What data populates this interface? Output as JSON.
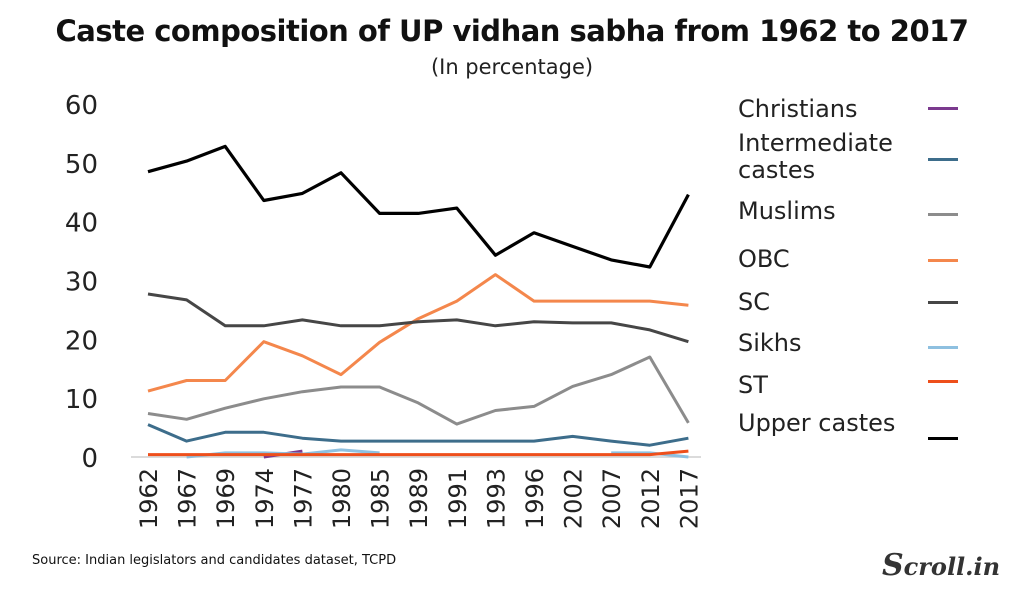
{
  "title": "Caste composition of UP vidhan sabha from 1962 to 2017",
  "subtitle": "(In percentage)",
  "source": "Source: Indian legislators and candidates dataset, TCPD",
  "brand": "Scroll.in",
  "chart_data": {
    "type": "line",
    "categories": [
      "1962",
      "1967",
      "1969",
      "1974",
      "1977",
      "1980",
      "1985",
      "1989",
      "1991",
      "1993",
      "1996",
      "2002",
      "2007",
      "2012",
      "2017"
    ],
    "ylim": [
      0,
      60
    ],
    "yticks": [
      0,
      10,
      20,
      30,
      40,
      50,
      60
    ],
    "grid": false,
    "legend_position": "right",
    "series": [
      {
        "name": "Christians",
        "color": "#7b3a8e",
        "values": [
          null,
          null,
          null,
          0,
          1,
          null,
          null,
          null,
          null,
          null,
          null,
          null,
          null,
          null,
          null
        ]
      },
      {
        "name": "Intermediate castes",
        "color": "#3d6d8b",
        "values": [
          5.5,
          2.7,
          4.2,
          4.2,
          3.2,
          2.7,
          2.7,
          2.7,
          2.7,
          2.7,
          2.7,
          3.5,
          2.7,
          2.0,
          3.2
        ]
      },
      {
        "name": "Muslims",
        "color": "#8c8c8c",
        "values": [
          7.4,
          6.4,
          8.3,
          9.9,
          11.1,
          11.9,
          11.9,
          9.2,
          5.6,
          7.9,
          8.6,
          12.0,
          14.0,
          17.0,
          5.8
        ]
      },
      {
        "name": "OBC",
        "color": "#f4874c",
        "values": [
          11.2,
          13.0,
          13.0,
          19.6,
          17.2,
          14.0,
          19.5,
          23.5,
          26.5,
          31.0,
          26.5,
          26.5,
          26.5,
          26.5,
          25.8
        ]
      },
      {
        "name": "SC",
        "color": "#464646",
        "values": [
          27.7,
          26.7,
          22.3,
          22.3,
          23.3,
          22.3,
          22.3,
          23.0,
          23.3,
          22.3,
          23.0,
          22.8,
          22.8,
          21.6,
          19.6
        ]
      },
      {
        "name": "Sikhs",
        "color": "#8ec0e0",
        "values": [
          null,
          0,
          0.7,
          0.7,
          0.5,
          1.2,
          0.7,
          null,
          null,
          null,
          null,
          null,
          0.7,
          0.7,
          0
        ]
      },
      {
        "name": "ST",
        "color": "#ee4f1b",
        "values": [
          0.4,
          0.4,
          0.4,
          0.4,
          0.4,
          0.4,
          0.4,
          0.4,
          0.4,
          0.4,
          0.4,
          0.4,
          0.4,
          0.4,
          1.0
        ]
      },
      {
        "name": "Upper castes",
        "color": "#000000",
        "values": [
          48.5,
          50.3,
          52.8,
          43.6,
          44.8,
          48.3,
          41.4,
          41.4,
          42.3,
          34.3,
          38.1,
          35.8,
          33.5,
          32.3,
          44.6
        ]
      }
    ]
  }
}
